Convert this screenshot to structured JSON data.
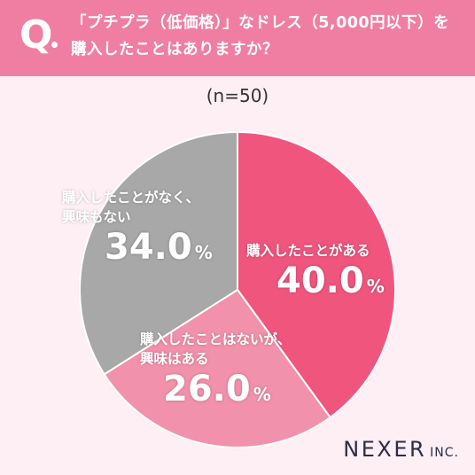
{
  "header": {
    "q_mark": "Q",
    "line1": "「プチプラ（低価格）」なドレス（5,000円以下）を",
    "line2": "購入したことはありますか？"
  },
  "sample_size": "(n=50)",
  "brand": {
    "name": "NEXER",
    "suffix": "INC."
  },
  "colors": {
    "header_bg": "#f07ea3",
    "background": "#fdeff3",
    "slice_a": "#f0557e",
    "slice_b": "#f291ab",
    "slice_c": "#a8a8a8"
  },
  "chart_data": {
    "type": "pie",
    "title": "「プチプラ（低価格）」なドレス（5,000円以下）を購入したことはありますか？",
    "categories": [
      "購入したことがある",
      "購入したことはないが、興味はある",
      "購入したことがなく、興味もない"
    ],
    "values": [
      40.0,
      26.0,
      34.0
    ],
    "unit": "%",
    "colors": [
      "#f0557e",
      "#f291ab",
      "#a8a8a8"
    ],
    "labels": {
      "a": {
        "cat": "購入したことがある",
        "pct": "40.0",
        "unit": "%"
      },
      "b": {
        "cat1": "購入したことはないが、",
        "cat2": "興味はある",
        "pct": "26.0",
        "unit": "%"
      },
      "c": {
        "cat1": "購入したことがなく、",
        "cat2": "興味もない",
        "pct": "34.0",
        "unit": "%"
      }
    }
  }
}
